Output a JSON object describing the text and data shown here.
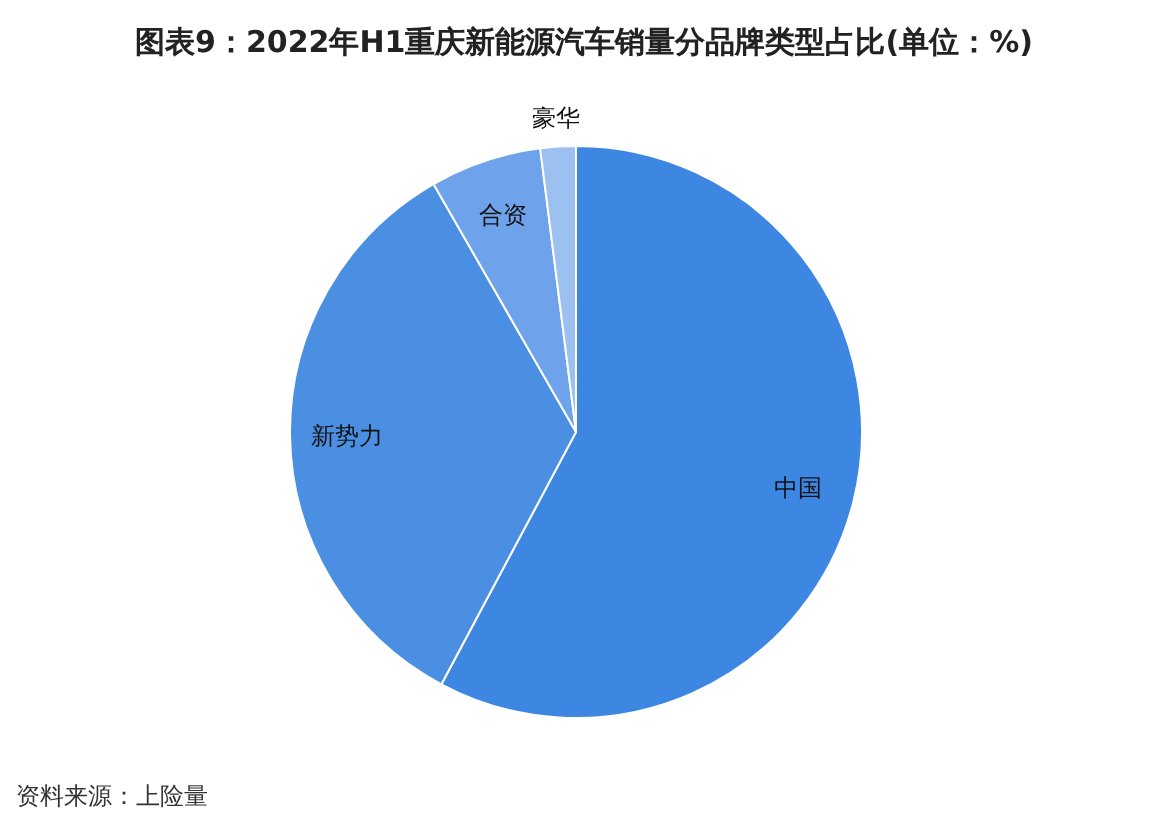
{
  "chart_data": {
    "type": "pie",
    "title": "图表9：2022年H1重庆新能源汽车销量分品牌类型占比(单位：%)",
    "categories": [
      "中国",
      "新势力",
      "合资",
      "豪华"
    ],
    "values": [
      57.8,
      33.9,
      6.3,
      2.0
    ],
    "colors": [
      "#3d87e3",
      "#4b8fe2",
      "#6ea2ea",
      "#9cc1f0"
    ],
    "annotations": [
      "资料来源：上险量"
    ]
  }
}
